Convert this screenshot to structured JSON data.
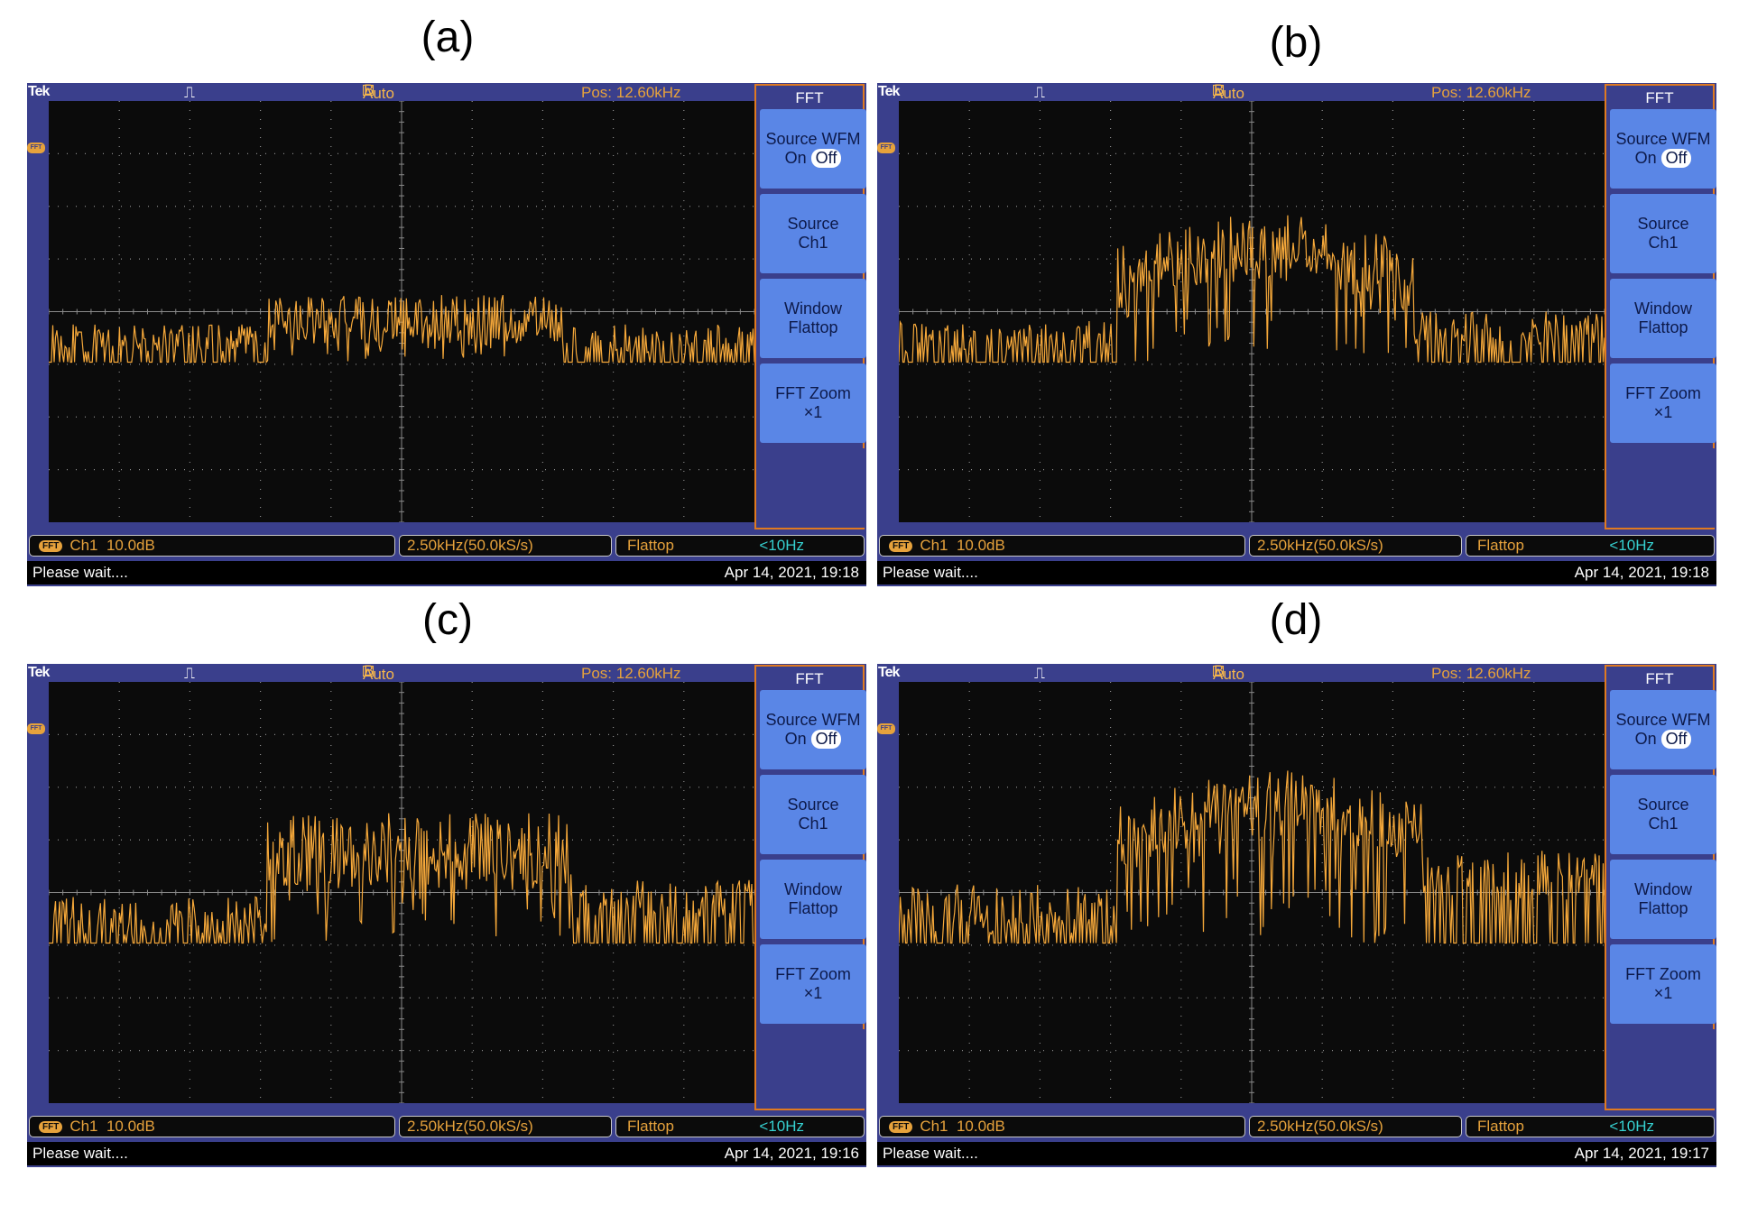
{
  "panels": [
    {
      "label": "(a)",
      "topbar": {
        "brand": "Tek",
        "trigger_icon": "⎍",
        "mode": "Auto",
        "position": "Pos: 12.60kHz"
      },
      "fft_marker": "FFT",
      "menu": {
        "title": "FFT",
        "source_wfm": "Source WFM",
        "on": "On",
        "off": "Off",
        "source": "Source",
        "source_val": "Ch1",
        "window": "Window",
        "window_val": "Flattop",
        "zoom": "FFT Zoom",
        "zoom_val": "×1"
      },
      "status": {
        "badge": "FFT",
        "channel": "Ch1",
        "scale": "10.0dB",
        "span": "2.50kHz(50.0kS/s)",
        "window": "Flattop",
        "resolution": "<10Hz"
      },
      "message": "Please wait....",
      "timestamp": "Apr 14, 2021, 19:18",
      "trace": {
        "floor": 0.62,
        "band_start": 0.31,
        "band_end": 0.73,
        "band_level": 0.52,
        "ramp": "flat",
        "peak": 0.46,
        "noise_floor_amp": 0.07,
        "band_amp": 0.12,
        "right_level": 0.6
      }
    },
    {
      "label": "(b)",
      "topbar": {
        "brand": "Tek",
        "trigger_icon": "⎍",
        "mode": "Auto",
        "position": "Pos: 12.60kHz"
      },
      "fft_marker": "FFT",
      "menu": {
        "title": "FFT",
        "source_wfm": "Source WFM",
        "on": "On",
        "off": "Off",
        "source": "Source",
        "source_val": "Ch1",
        "window": "Window",
        "window_val": "Flattop",
        "zoom": "FFT Zoom",
        "zoom_val": "×1"
      },
      "status": {
        "badge": "FFT",
        "channel": "Ch1",
        "scale": "10.0dB",
        "span": "2.50kHz(50.0kS/s)",
        "window": "Flattop",
        "resolution": "<10Hz"
      },
      "message": "Please wait....",
      "timestamp": "Apr 14, 2021, 19:18",
      "trace": {
        "floor": 0.62,
        "band_start": 0.31,
        "band_end": 0.73,
        "band_level": 0.42,
        "ramp": "dome",
        "peak": 0.34,
        "noise_floor_amp": 0.08,
        "band_amp": 0.16,
        "right_level": 0.58
      }
    },
    {
      "label": "(c)",
      "topbar": {
        "brand": "Tek",
        "trigger_icon": "⎍",
        "mode": "Auto",
        "position": "Pos: 12.60kHz"
      },
      "fft_marker": "FFT",
      "menu": {
        "title": "FFT",
        "source_wfm": "Source WFM",
        "on": "On",
        "off": "Off",
        "source": "Source",
        "source_val": "Ch1",
        "window": "Window",
        "window_val": "Flattop",
        "zoom": "FFT Zoom",
        "zoom_val": "×1"
      },
      "status": {
        "badge": "FFT",
        "channel": "Ch1",
        "scale": "10.0dB",
        "span": "2.50kHz(50.0kS/s)",
        "window": "Flattop",
        "resolution": "<10Hz"
      },
      "message": "Please wait....",
      "timestamp": "Apr 14, 2021, 19:16",
      "trace": {
        "floor": 0.62,
        "band_start": 0.31,
        "band_end": 0.74,
        "band_level": 0.4,
        "ramp": "flat",
        "peak": 0.3,
        "noise_floor_amp": 0.09,
        "band_amp": 0.18,
        "right_level": 0.56
      }
    },
    {
      "label": "(d)",
      "topbar": {
        "brand": "Tek",
        "trigger_icon": "⎍",
        "mode": "Auto",
        "position": "Pos: 12.60kHz"
      },
      "fft_marker": "FFT",
      "menu": {
        "title": "FFT",
        "source_wfm": "Source WFM",
        "on": "On",
        "off": "Off",
        "source": "Source",
        "source_val": "Ch1",
        "window": "Window",
        "window_val": "Flattop",
        "zoom": "FFT Zoom",
        "zoom_val": "×1"
      },
      "status": {
        "badge": "FFT",
        "channel": "Ch1",
        "scale": "10.0dB",
        "span": "2.50kHz(50.0kS/s)",
        "window": "Flattop",
        "resolution": "<10Hz"
      },
      "message": "Please wait....",
      "timestamp": "Apr 14, 2021, 19:17",
      "trace": {
        "floor": 0.62,
        "band_start": 0.31,
        "band_end": 0.74,
        "band_level": 0.37,
        "ramp": "dome",
        "peak": 0.28,
        "noise_floor_amp": 0.12,
        "band_amp": 0.16,
        "right_level": 0.52
      }
    }
  ],
  "colors": {
    "bezel": "#3a3f8c",
    "screen": "#0b0b0b",
    "trace": "#f5a83a",
    "grid": "#8a8a8a",
    "menu_button": "#5a86e6",
    "accent": "#e6a23c"
  }
}
